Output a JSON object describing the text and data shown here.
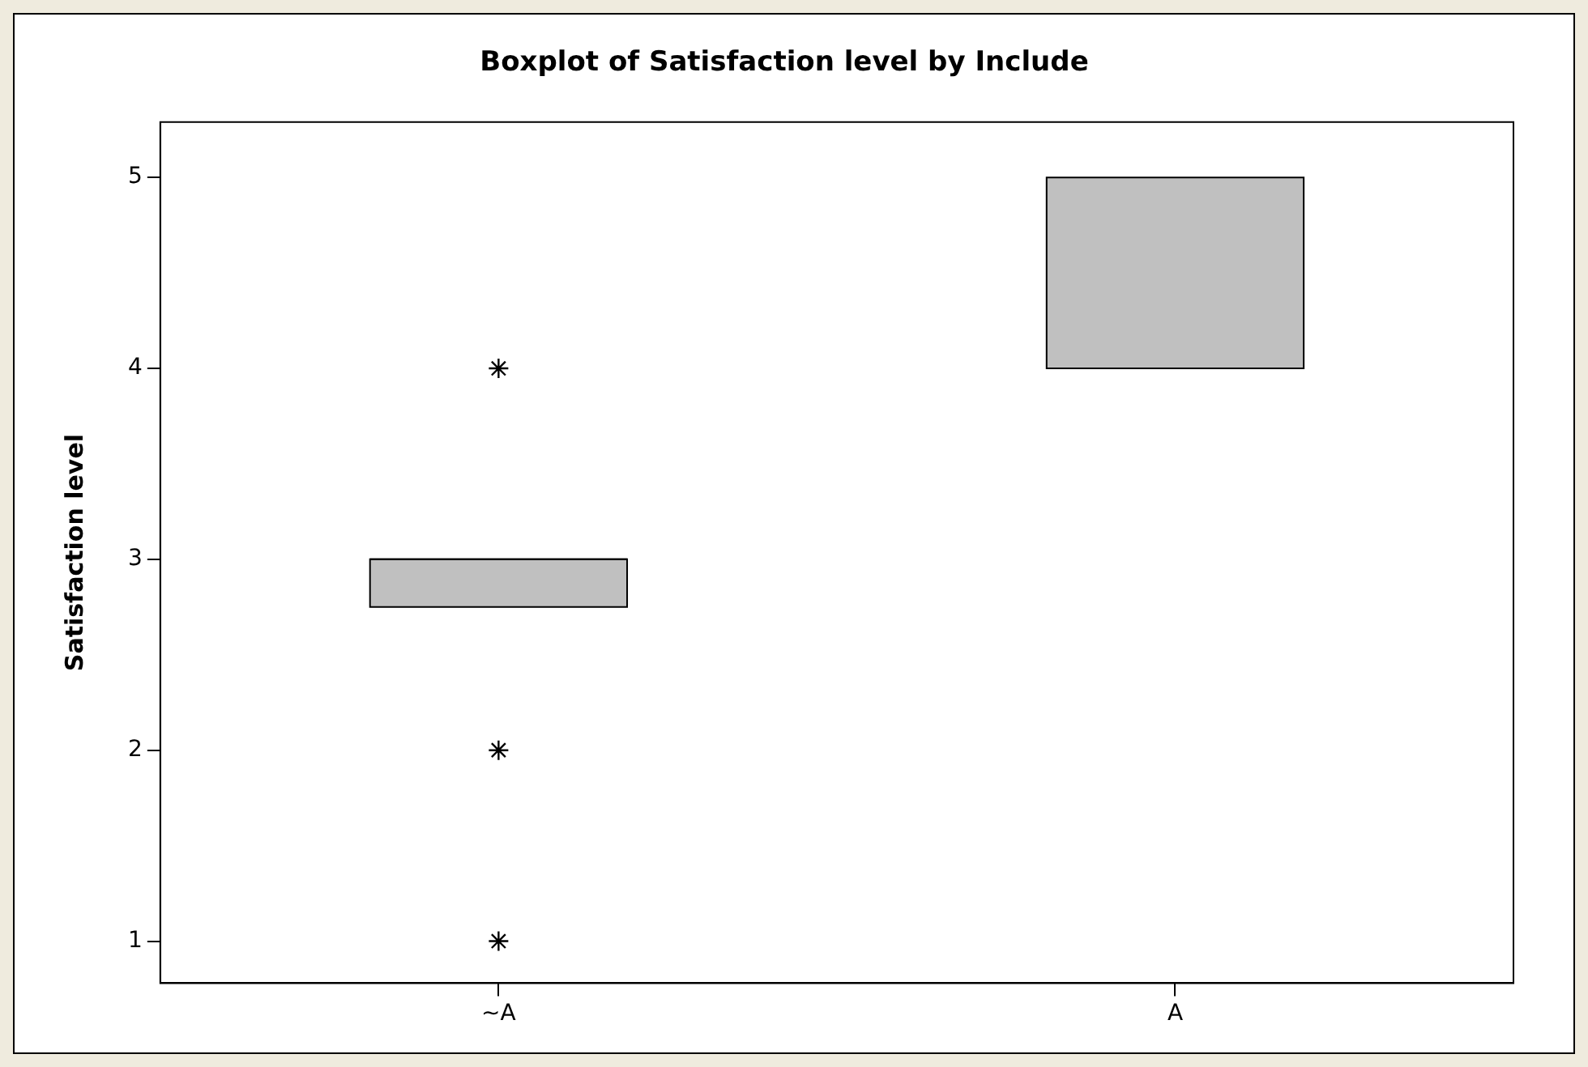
{
  "chart_data": {
    "type": "box",
    "title": "Boxplot of Satisfaction level by Include",
    "ylabel": "Satisfaction level",
    "categories": [
      "~A",
      "A"
    ],
    "boxes": [
      {
        "low": 2.75,
        "q1": 2.75,
        "median": 3,
        "q3": 3,
        "high": 3,
        "outliers": [
          4,
          2,
          1
        ]
      },
      {
        "low": 4,
        "q1": 4,
        "median": 4,
        "q3": 5,
        "high": 5
      }
    ],
    "color": "#c0c0c0",
    "ylim": [
      0.78,
      5.29
    ],
    "yticks": [
      1,
      2,
      3,
      4,
      5
    ],
    "marker": "star"
  }
}
